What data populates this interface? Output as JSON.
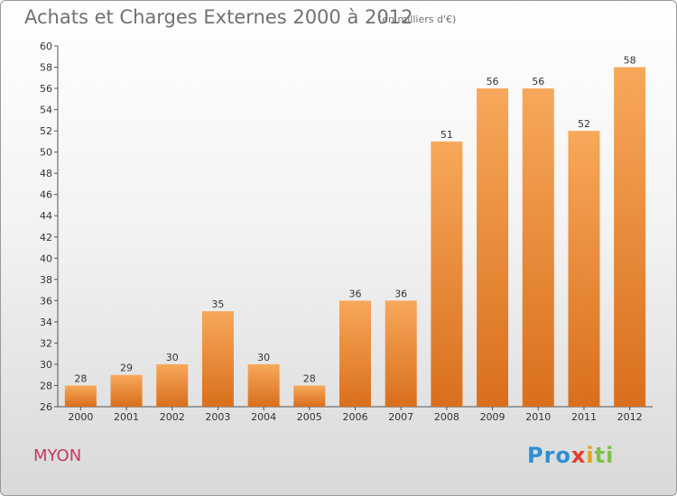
{
  "header": {
    "title": "Achats et Charges Externes 2000 à 2012",
    "subtitle": "(en milliers d'€)"
  },
  "footer": {
    "commune": "MYON",
    "logo": "Proxiti"
  },
  "colors": {
    "bar_light": "#f7a85a",
    "bar_dark": "#d96f1c",
    "commune": "#c8385e"
  },
  "chart_data": {
    "type": "bar",
    "title": "Achats et Charges Externes 2000 à 2012",
    "subtitle": "(en milliers d'€)",
    "categories": [
      "2000",
      "2001",
      "2002",
      "2003",
      "2004",
      "2005",
      "2006",
      "2007",
      "2008",
      "2009",
      "2010",
      "2011",
      "2012"
    ],
    "values": [
      28,
      29,
      30,
      35,
      30,
      28,
      36,
      36,
      51,
      56,
      56,
      52,
      58
    ],
    "ylim": [
      26,
      60
    ],
    "yticks": [
      26,
      28,
      30,
      32,
      34,
      36,
      38,
      40,
      42,
      44,
      46,
      48,
      50,
      52,
      54,
      56,
      58,
      60
    ],
    "grid": false,
    "xlabel": "",
    "ylabel": ""
  }
}
